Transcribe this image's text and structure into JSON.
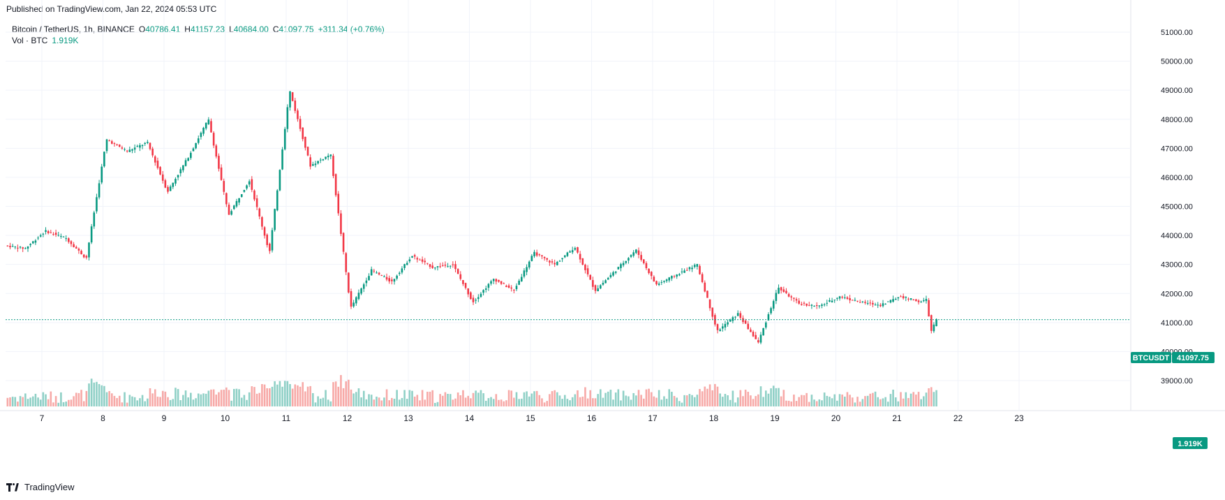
{
  "header": {
    "published": "Published on TradingView.com, Jan 22, 2024 05:53 UTC"
  },
  "legend": {
    "symbol": "Bitcoin / TetherUS, 1h, BINANCE",
    "o_label": "O",
    "o": "40786.41",
    "h_label": "H",
    "h": "41157.23",
    "l_label": "L",
    "l": "40684.00",
    "c_label": "C",
    "c": "41097.75",
    "change": "+311.34 (+0.76%)",
    "vol_label": "Vol · BTC",
    "vol_value": "1.919K"
  },
  "price_tag": {
    "ticker": "BTCUSDT",
    "price": "41097.75"
  },
  "volume_tag": "1.919K",
  "brand": "TradingView",
  "colors": {
    "up": "#089981",
    "down": "#f23645",
    "up_vol": "#8fd0c6",
    "down_vol": "#f7a9a7",
    "grid": "#f0f3fa"
  },
  "chart_data": {
    "type": "candlestick",
    "interval": "1h",
    "symbol": "BTCUSDT",
    "yticks": [
      "39000.00",
      "40000.00",
      "41000.00",
      "42000.00",
      "43000.00",
      "44000.00",
      "45000.00",
      "46000.00",
      "47000.00",
      "48000.00",
      "49000.00",
      "50000.00",
      "51000.00"
    ],
    "ylim": [
      38100,
      51300
    ],
    "xticks": [
      "7",
      "8",
      "9",
      "10",
      "11",
      "12",
      "13",
      "14",
      "15",
      "16",
      "17",
      "18",
      "19",
      "20",
      "21",
      "22",
      "23"
    ],
    "last_price": 41097.75,
    "volume_label": "Vol · BTC",
    "last_volume": "1.919K",
    "daily_ohlc": [
      {
        "day": "7",
        "o": 43650,
        "h": 44150,
        "l": 43550,
        "c": 43900
      },
      {
        "day": "8",
        "o": 43900,
        "h": 47300,
        "l": 43200,
        "c": 46900
      },
      {
        "day": "9",
        "o": 46900,
        "h": 47200,
        "l": 45500,
        "c": 46700
      },
      {
        "day": "10",
        "o": 46700,
        "h": 48000,
        "l": 44700,
        "c": 45900
      },
      {
        "day": "11",
        "o": 45900,
        "h": 49000,
        "l": 43400,
        "c": 46400
      },
      {
        "day": "12",
        "o": 46400,
        "h": 46800,
        "l": 41500,
        "c": 42800
      },
      {
        "day": "13",
        "o": 42800,
        "h": 43300,
        "l": 42400,
        "c": 42900
      },
      {
        "day": "14",
        "o": 42900,
        "h": 43000,
        "l": 41700,
        "c": 42500
      },
      {
        "day": "15",
        "o": 42500,
        "h": 43400,
        "l": 42100,
        "c": 43000
      },
      {
        "day": "16",
        "o": 43000,
        "h": 43600,
        "l": 42100,
        "c": 42800
      },
      {
        "day": "17",
        "o": 42800,
        "h": 43500,
        "l": 42300,
        "c": 42650
      },
      {
        "day": "18",
        "o": 42650,
        "h": 43000,
        "l": 40700,
        "c": 41300
      },
      {
        "day": "19",
        "o": 41300,
        "h": 42200,
        "l": 40300,
        "c": 41650
      },
      {
        "day": "20",
        "o": 41650,
        "h": 41900,
        "l": 41550,
        "c": 41700
      },
      {
        "day": "21",
        "o": 41700,
        "h": 41900,
        "l": 41600,
        "c": 41700
      },
      {
        "day": "22",
        "o": 41700,
        "h": 41800,
        "l": 40700,
        "c": 41097.75
      }
    ]
  }
}
